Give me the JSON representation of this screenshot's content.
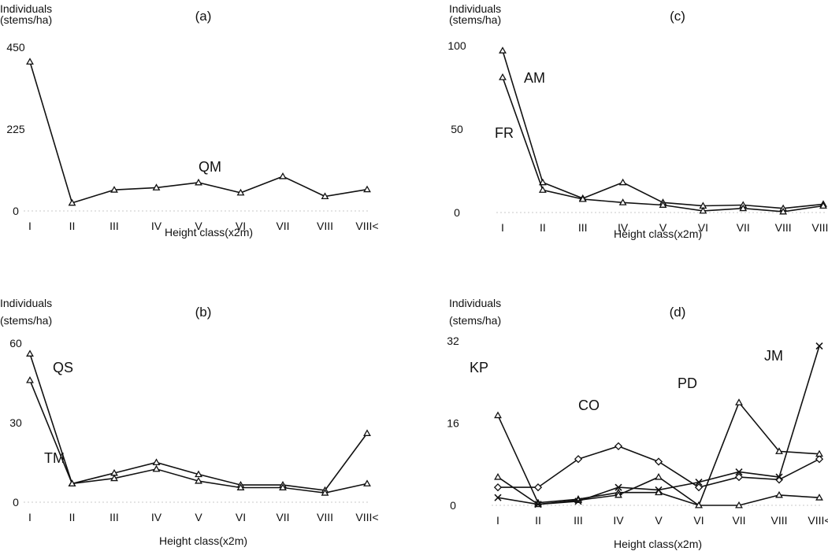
{
  "chart_data": [
    {
      "type": "line",
      "panel_label": "(a)",
      "ylabel_lines": [
        "Individuals",
        "(stems/ha)"
      ],
      "xlabel": "Height class(x2m)",
      "categories": [
        "I",
        "II",
        "III",
        "IV",
        "V",
        "VI",
        "VII",
        "VIII",
        "VIII<"
      ],
      "ylim": [
        0,
        450
      ],
      "yticks": [
        "0",
        "225",
        "450"
      ],
      "series": [
        {
          "name": "QM",
          "marker": "triangle",
          "values": [
            410,
            22,
            58,
            64,
            78,
            50,
            95,
            40,
            59
          ]
        }
      ]
    },
    {
      "type": "line",
      "panel_label": "(b)",
      "ylabel_lines": [
        "Individuals",
        "(stems/ha)"
      ],
      "xlabel": "Height class(x2m)",
      "categories": [
        "I",
        "II",
        "III",
        "IV",
        "V",
        "VI",
        "VII",
        "VIII",
        "VIII<"
      ],
      "ylim": [
        0,
        60
      ],
      "yticks": [
        "0",
        "30",
        "60"
      ],
      "series": [
        {
          "name": "QS",
          "marker": "triangle",
          "values": [
            56,
            7,
            11,
            15,
            10.5,
            6.5,
            6.5,
            4.5,
            26
          ]
        },
        {
          "name": "TM",
          "marker": "triangle",
          "values": [
            46,
            7,
            9,
            12.5,
            8,
            5.5,
            5.5,
            3.5,
            7
          ]
        }
      ]
    },
    {
      "type": "line",
      "panel_label": "(c)",
      "ylabel_lines": [
        "Individuals",
        "(stems/ha)"
      ],
      "xlabel": "Height class(x2m)",
      "categories": [
        "I",
        "II",
        "III",
        "IV",
        "V",
        "VI",
        "VII",
        "VIII",
        "VIII<"
      ],
      "ylim": [
        0,
        100
      ],
      "yticks": [
        "0",
        "50",
        "100"
      ],
      "series": [
        {
          "name": "AM",
          "marker": "triangle",
          "values": [
            97,
            18,
            8.5,
            18,
            6,
            4,
            4.5,
            2.5,
            5
          ]
        },
        {
          "name": "FR",
          "marker": "triangle",
          "values": [
            81,
            13.5,
            8,
            6,
            4.5,
            1,
            2.5,
            0.5,
            4
          ]
        }
      ]
    },
    {
      "type": "line",
      "panel_label": "(d)",
      "ylabel_lines": [
        "Individuals",
        "(stems/ha)"
      ],
      "xlabel": "Height class(x2m)",
      "categories": [
        "I",
        "II",
        "III",
        "IV",
        "V",
        "VI",
        "VII",
        "VIII",
        "VIII<"
      ],
      "ylim": [
        0,
        32
      ],
      "yticks": [
        "0",
        "16",
        "32"
      ],
      "series": [
        {
          "name": "KP",
          "marker": "triangle",
          "values": [
            17.5,
            0.5,
            1.2,
            2.5,
            2.5,
            0,
            0,
            2,
            1.5
          ]
        },
        {
          "name": "CO",
          "marker": "diamond",
          "values": [
            3.5,
            3.5,
            9,
            11.5,
            8.5,
            3.5,
            5.5,
            5,
            9
          ]
        },
        {
          "name": "PD",
          "marker": "triangle",
          "values": [
            5.5,
            0.2,
            1,
            2,
            5.5,
            0,
            20,
            10.5,
            10
          ]
        },
        {
          "name": "JM",
          "marker": "cross",
          "values": [
            1.5,
            0.2,
            0.8,
            3.5,
            3,
            4.5,
            6.5,
            5.5,
            31
          ]
        }
      ]
    }
  ]
}
